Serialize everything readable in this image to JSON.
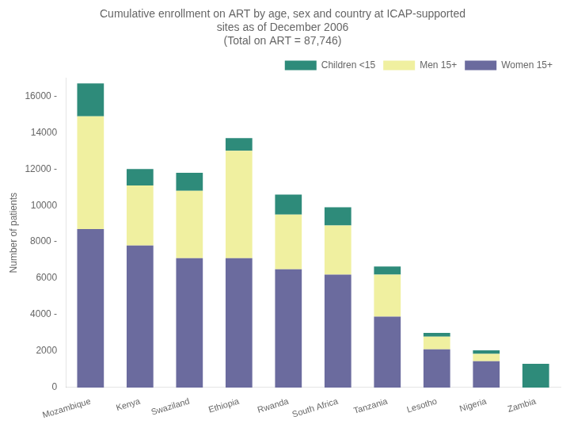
{
  "chart_data": {
    "type": "bar",
    "stacked": true,
    "title": [
      "Cumulative enrollment on ART by age, sex and country at ICAP-supported",
      "sites as of December 2006",
      "(Total on ART = 87,746)"
    ],
    "y_label": "Number of patients",
    "categories": [
      "Mozambique",
      "Kenya",
      "Swaziland",
      "Ethiopia",
      "Rwanda",
      "South Africa",
      "Tanzania",
      "Lesotho",
      "Nigeria",
      "Zambia"
    ],
    "series": [
      {
        "name": "Women 15+",
        "color": "#6b6b9e",
        "values": [
          8700,
          7800,
          7100,
          7100,
          6500,
          6200,
          3900,
          2100,
          1450,
          0
        ]
      },
      {
        "name": "Men 15+",
        "color": "#f0f0a0",
        "values": [
          6200,
          3300,
          3700,
          5900,
          3000,
          2700,
          2300,
          700,
          400,
          0
        ]
      },
      {
        "name": "Children <15",
        "color": "#2e8b7a",
        "values": [
          1800,
          900,
          1000,
          700,
          1100,
          1000,
          450,
          200,
          200,
          1300
        ]
      }
    ],
    "ylim": [
      0,
      17000
    ],
    "yticks": [
      0,
      2000,
      {
        "value": 4000,
        "label": "4000 -"
      },
      6000,
      {
        "value": 8000,
        "label": "8000 -"
      },
      10000,
      {
        "value": 12000,
        "label": "12000 -"
      },
      14000,
      {
        "value": 16000,
        "label": "16000 -"
      }
    ],
    "grid": false,
    "legend": "upper right"
  }
}
